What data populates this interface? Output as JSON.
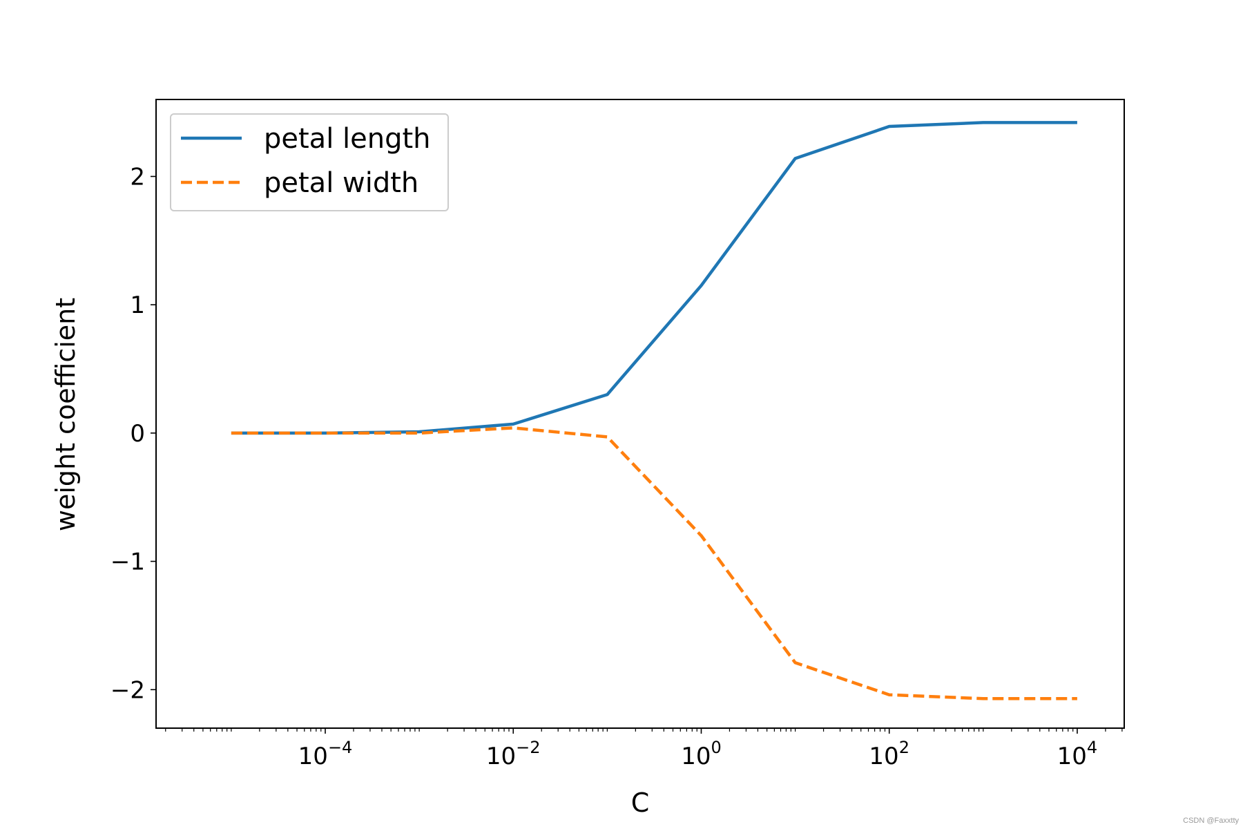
{
  "chart_data": {
    "type": "line",
    "xscale": "log",
    "xlabel": "C",
    "ylabel": "weight coefficient",
    "xlim_log10": [
      -5.8,
      4.5
    ],
    "ylim": [
      -2.3,
      2.6
    ],
    "x": [
      1e-05,
      0.0001,
      0.001,
      0.01,
      0.1,
      1,
      10,
      100,
      1000,
      10000
    ],
    "series": [
      {
        "name": "petal length",
        "color": "#1f77b4",
        "linestyle": "solid",
        "values": [
          0.0,
          0.0,
          0.01,
          0.07,
          0.3,
          1.15,
          2.14,
          2.39,
          2.42,
          2.42
        ]
      },
      {
        "name": "petal width",
        "color": "#ff7f0e",
        "linestyle": "dashed",
        "values": [
          0.0,
          0.0,
          0.0,
          0.04,
          -0.03,
          -0.8,
          -1.79,
          -2.04,
          -2.07,
          -2.07
        ]
      }
    ],
    "xticks": [
      {
        "base": "10",
        "exp": "−4",
        "log": -4
      },
      {
        "base": "10",
        "exp": "−2",
        "log": -2
      },
      {
        "base": "10",
        "exp": "0",
        "log": 0
      },
      {
        "base": "10",
        "exp": "2",
        "log": 2
      },
      {
        "base": "10",
        "exp": "4",
        "log": 4
      }
    ],
    "yticks": [
      {
        "label": "−2",
        "value": -2
      },
      {
        "label": "−1",
        "value": -1
      },
      {
        "label": "0",
        "value": 0
      },
      {
        "label": "1",
        "value": 1
      },
      {
        "label": "2",
        "value": 2
      }
    ],
    "legend_position": "top-left"
  },
  "watermark": "CSDN @Faxxtty"
}
